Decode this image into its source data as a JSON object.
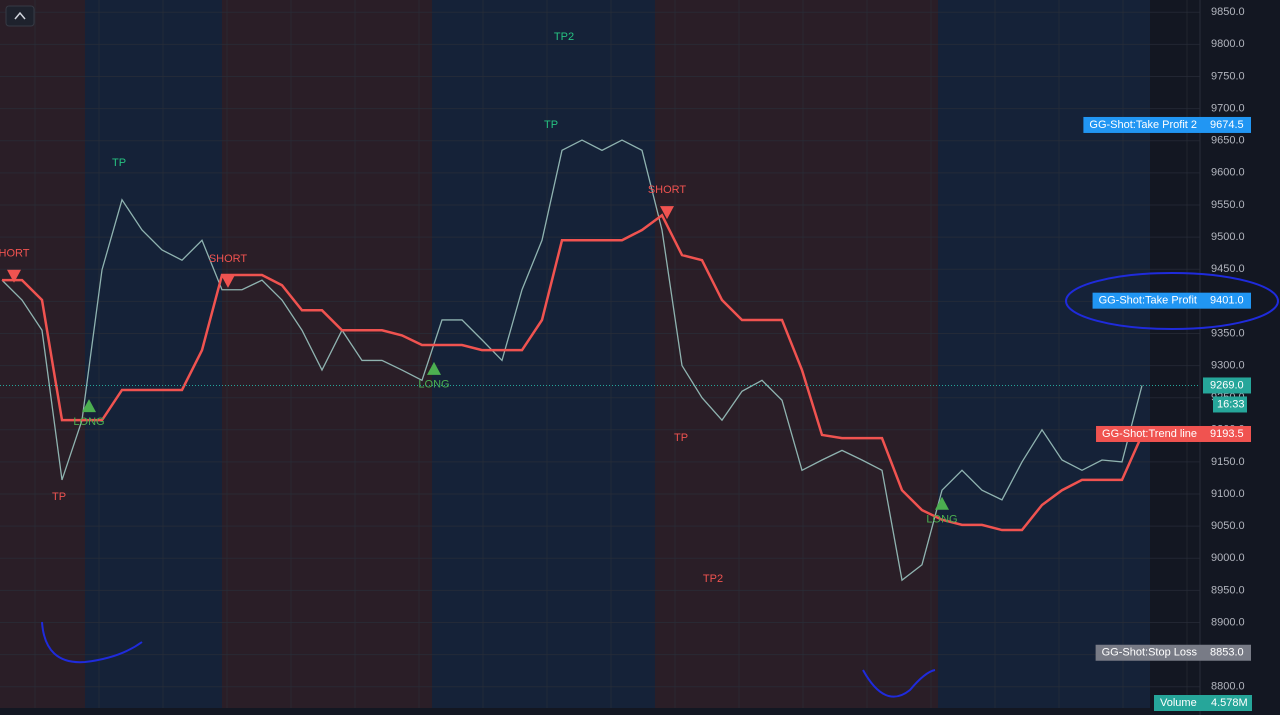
{
  "chart_data": {
    "type": "line",
    "ylim": [
      8767,
      9869
    ],
    "yticks": [
      {
        "value": 8800,
        "label": "8800.0"
      },
      {
        "value": 8850,
        "label": "8850.0"
      },
      {
        "value": 8900,
        "label": "8900.0"
      },
      {
        "value": 8950,
        "label": "8950.0"
      },
      {
        "value": 9000,
        "label": "9000.0"
      },
      {
        "value": 9050,
        "label": "9050.0"
      },
      {
        "value": 9100,
        "label": "9100.0"
      },
      {
        "value": 9150,
        "label": "9150.0"
      },
      {
        "value": 9200,
        "label": "9200.0"
      },
      {
        "value": 9250,
        "label": "9250.0"
      },
      {
        "value": 9300,
        "label": "9300.0"
      },
      {
        "value": 9350,
        "label": "9350.0"
      },
      {
        "value": 9400,
        "label": "9400.0"
      },
      {
        "value": 9450,
        "label": "9450.0"
      },
      {
        "value": 9500,
        "label": "9500.0"
      },
      {
        "value": 9550,
        "label": "9550.0"
      },
      {
        "value": 9600,
        "label": "9600.0"
      },
      {
        "value": 9650,
        "label": "9650.0"
      },
      {
        "value": 9700,
        "label": "9700.0"
      },
      {
        "value": 9750,
        "label": "9750.0"
      },
      {
        "value": 9800,
        "label": "9800.0"
      },
      {
        "value": 9850,
        "label": "9850.0"
      }
    ],
    "grid": true,
    "series": [
      {
        "color": "#8fb3b0",
        "values": [
          9433,
          9402,
          9355,
          9122,
          9215,
          9449,
          9558,
          9511,
          9480,
          9464,
          9495,
          9418,
          9418,
          9433,
          9402,
          9355,
          9293,
          9355,
          9308,
          9308,
          9293,
          9277,
          9371,
          9371,
          9340,
          9308,
          9418,
          9495,
          9635,
          9651,
          9635,
          9651,
          9635,
          9511,
          9300,
          9250,
          9215,
          9260,
          9277,
          9246,
          9137,
          9153,
          9168,
          9153,
          9137,
          8966,
          8990,
          9106,
          9137,
          9106,
          9091,
          9150,
          9200,
          9153,
          9137,
          9153,
          9150,
          9269
        ]
      },
      {
        "color": "#f05350",
        "values": [
          9433,
          9433,
          9402,
          9215,
          9215,
          9215,
          9262,
          9262,
          9262,
          9262,
          9324,
          9441,
          9441,
          9441,
          9425,
          9386,
          9386,
          9355,
          9355,
          9355,
          9347,
          9332,
          9332,
          9332,
          9324,
          9324,
          9324,
          9371,
          9495,
          9495,
          9495,
          9495,
          9511,
          9534,
          9472,
          9464,
          9402,
          9371,
          9371,
          9371,
          9293,
          9192,
          9187,
          9187,
          9187,
          9106,
          9075,
          9060,
          9052,
          9052,
          9044,
          9044,
          9083,
          9106,
          9122,
          9122,
          9122,
          9192
        ]
      }
    ],
    "signals": [
      {
        "label": "HORT",
        "index": 0.6,
        "price": 9474,
        "color": "#f05350",
        "arrow": "down"
      },
      {
        "label": "TP",
        "index": 2.85,
        "price": 9095,
        "color": "#f05350"
      },
      {
        "label": "LONG",
        "index": 4.35,
        "price": 9212,
        "color": "#4caf50",
        "arrow": "up"
      },
      {
        "label": "TP",
        "index": 5.85,
        "price": 9615,
        "color": "#26c281"
      },
      {
        "label": "SHORT",
        "index": 11.3,
        "price": 9466,
        "color": "#f05350",
        "arrow": "down"
      },
      {
        "label": "LONG",
        "index": 21.6,
        "price": 9270,
        "color": "#4caf50",
        "arrow": "up"
      },
      {
        "label": "TP",
        "index": 27.45,
        "price": 9674,
        "color": "#26c281"
      },
      {
        "label": "TP2",
        "index": 28.1,
        "price": 9811,
        "color": "#26c281"
      },
      {
        "label": "SHORT",
        "index": 33.25,
        "price": 9573,
        "color": "#f05350",
        "arrow": "down"
      },
      {
        "label": "TP",
        "index": 33.95,
        "price": 9187,
        "color": "#f05350"
      },
      {
        "label": "TP2",
        "index": 35.55,
        "price": 8968,
        "color": "#f05350"
      },
      {
        "label": "LONG",
        "index": 47,
        "price": 9060,
        "color": "#4caf50",
        "arrow": "up"
      }
    ],
    "price_markers": [
      {
        "name": "GG-Shot:Take Profit 2",
        "value": 9674.5,
        "label": "9674.5",
        "color": "#2196f3"
      },
      {
        "name": "GG-Shot:Take Profit",
        "value": 9401,
        "label": "9401.0",
        "color": "#2196f3"
      },
      {
        "value": 9269,
        "label": "9269.0",
        "sublabel": "16:33",
        "color": "#26a69a"
      },
      {
        "name": "GG-Shot:Trend line",
        "value": 9193.5,
        "label": "9193.5",
        "color": "#f05350"
      },
      {
        "name": "GG-Shot:Stop Loss",
        "value": 8853,
        "label": "8853.0",
        "color": "#787b86"
      }
    ],
    "volume_marker": {
      "name": "Volume",
      "value": 4578000,
      "label": "4.578M",
      "color": "#26a69a"
    }
  }
}
